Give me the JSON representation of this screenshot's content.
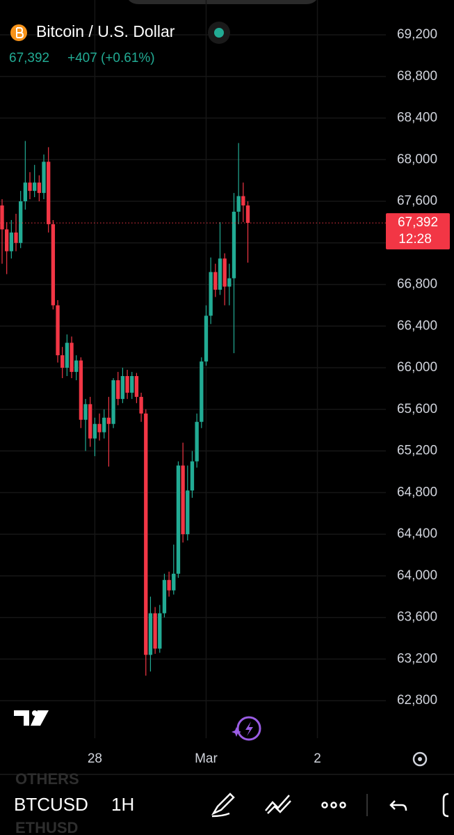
{
  "chart_data": {
    "type": "candlestick",
    "title": "Bitcoin / U.S. Dollar",
    "quote": {
      "price": "67,392",
      "change": "+407",
      "change_pct": "(+0.61%)"
    },
    "last_price": {
      "value": 67392,
      "label": "67,392"
    },
    "countdown": "12:28",
    "up_color": "#22ab94",
    "down_color": "#f23645",
    "grid": true,
    "x": [
      0,
      1,
      2,
      3,
      4,
      5,
      6,
      7,
      8,
      9,
      10,
      11,
      12,
      13,
      14,
      15,
      16,
      17,
      18,
      19,
      20,
      21,
      22,
      23,
      24,
      25,
      26,
      27,
      28,
      29,
      30,
      31,
      32,
      33,
      34,
      35,
      36,
      37,
      38,
      39,
      40,
      41,
      42,
      43,
      44,
      45,
      46,
      47,
      48,
      49,
      50,
      51,
      52,
      53
    ],
    "open": [
      67560,
      67330,
      67120,
      67300,
      67200,
      67600,
      67780,
      67700,
      67780,
      67680,
      67980,
      67380,
      66600,
      66120,
      66000,
      66240,
      65960,
      66070,
      65500,
      65650,
      65320,
      65460,
      65380,
      65520,
      65460,
      65880,
      65700,
      65920,
      65760,
      65920,
      65720,
      65560,
      63240,
      63640,
      63300,
      63640,
      63960,
      63860,
      64020,
      65060,
      64400,
      64820,
      65100,
      65480,
      66060,
      66500,
      66920,
      66750,
      67050,
      66780,
      66860,
      67500,
      67650,
      67560
    ],
    "high": [
      67620,
      67400,
      67420,
      67480,
      67700,
      68180,
      67880,
      67950,
      67850,
      68050,
      68120,
      67420,
      66650,
      66200,
      66320,
      66300,
      66120,
      66100,
      65700,
      65720,
      65520,
      65560,
      65600,
      65720,
      65900,
      65960,
      66000,
      65980,
      65960,
      65950,
      65760,
      65600,
      63800,
      63700,
      63720,
      64020,
      64040,
      64300,
      65100,
      65280,
      65060,
      65200,
      65560,
      66100,
      66600,
      67060,
      67000,
      67400,
      67100,
      67000,
      67680,
      68160,
      67780,
      67600
    ],
    "low": [
      67000,
      66900,
      67050,
      67120,
      67150,
      67520,
      67620,
      67640,
      67600,
      67620,
      67300,
      66560,
      66050,
      65900,
      65920,
      65900,
      65880,
      65420,
      65200,
      65240,
      65150,
      65300,
      65320,
      65050,
      65420,
      65640,
      65660,
      65700,
      65700,
      65660,
      65480,
      63040,
      63080,
      63250,
      63260,
      63600,
      63800,
      63820,
      63980,
      64320,
      64340,
      64750,
      65040,
      65420,
      66020,
      66420,
      66680,
      66700,
      66600,
      66600,
      66140,
      67380,
      67400,
      67010
    ],
    "close": [
      67330,
      67120,
      67300,
      67200,
      67600,
      67780,
      67700,
      67780,
      67680,
      67980,
      67380,
      66600,
      66120,
      66000,
      66240,
      65960,
      66070,
      65500,
      65650,
      65320,
      65460,
      65380,
      65520,
      65460,
      65880,
      65700,
      65920,
      65760,
      65920,
      65720,
      65560,
      63240,
      63640,
      63300,
      63640,
      63960,
      63860,
      64020,
      65060,
      64400,
      64820,
      65100,
      65480,
      66060,
      66500,
      66920,
      66750,
      67050,
      66780,
      66860,
      67500,
      67650,
      67560,
      67392
    ],
    "xlim": [
      -0.45,
      82.76
    ],
    "xticks": [
      {
        "value": 20,
        "label": "28"
      },
      {
        "value": 44,
        "label": "Mar"
      },
      {
        "value": 68,
        "label": "2"
      }
    ],
    "ylim": [
      62439,
      69535
    ],
    "yticks": [
      {
        "value": 62800,
        "label": "62,800"
      },
      {
        "value": 63200,
        "label": "63,200"
      },
      {
        "value": 63600,
        "label": "63,600"
      },
      {
        "value": 64000,
        "label": "64,000"
      },
      {
        "value": 64400,
        "label": "64,400"
      },
      {
        "value": 64800,
        "label": "64,800"
      },
      {
        "value": 65200,
        "label": "65,200"
      },
      {
        "value": 65600,
        "label": "65,600"
      },
      {
        "value": 66000,
        "label": "66,000"
      },
      {
        "value": 66400,
        "label": "66,400"
      },
      {
        "value": 66800,
        "label": "66,800"
      },
      {
        "value": 67200,
        "label": "67,200"
      },
      {
        "value": 67600,
        "label": "67,600"
      },
      {
        "value": 68000,
        "label": "68,000"
      },
      {
        "value": 68400,
        "label": "68,400"
      },
      {
        "value": 68800,
        "label": "68,800"
      },
      {
        "value": 69200,
        "label": "69,200"
      }
    ]
  },
  "toolbar": {
    "symbol": "BTCUSD",
    "interval": "1H",
    "watchlist": [
      "OTHERS",
      "ETHUSD"
    ]
  }
}
